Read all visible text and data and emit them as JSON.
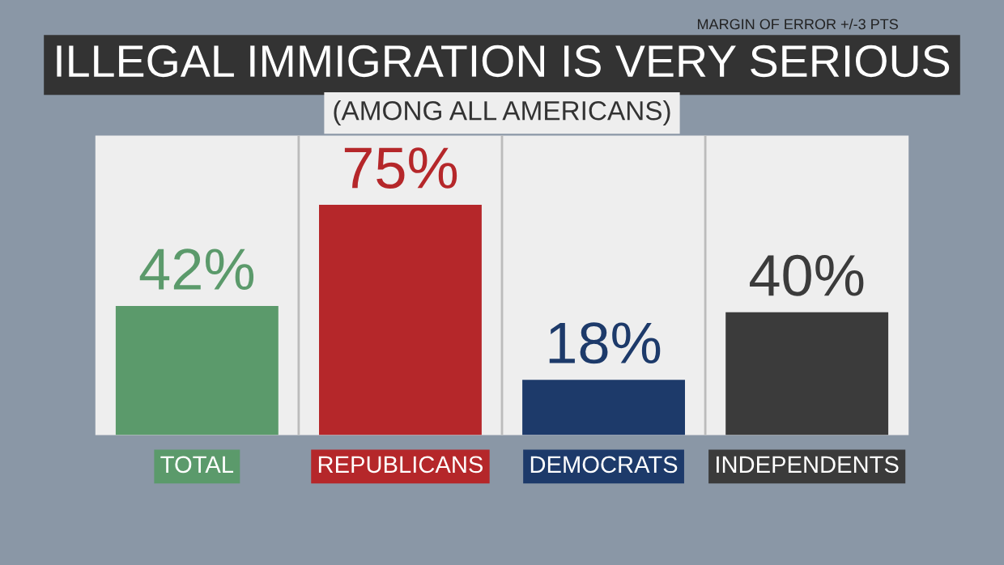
{
  "chart_data": {
    "type": "bar",
    "title": "ILLEGAL IMMIGRATION IS VERY SERIOUS",
    "subtitle": "(AMONG ALL AMERICANS)",
    "categories": [
      "TOTAL",
      "REPUBLICANS",
      "DEMOCRATS",
      "INDEPENDENTS"
    ],
    "values": [
      42,
      75,
      18,
      40
    ],
    "colors": [
      "#5b9a6b",
      "#b5272a",
      "#1d3a6a",
      "#3b3b3b"
    ],
    "value_labels": [
      "42%",
      "75%",
      "18%",
      "40%"
    ],
    "annotations": [
      "MARGIN OF ERROR +/-3 PTS"
    ]
  }
}
